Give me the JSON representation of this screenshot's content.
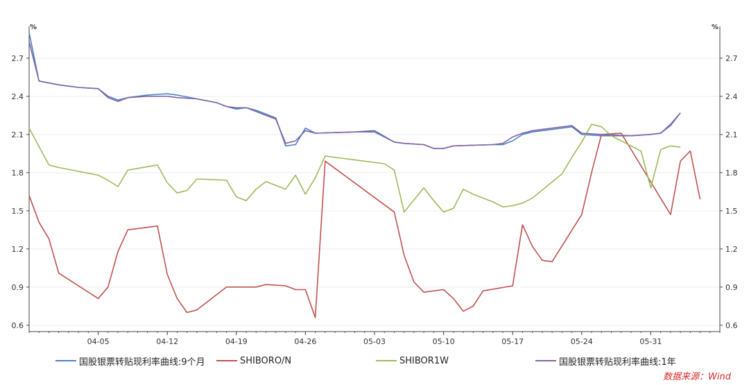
{
  "chart_data": {
    "type": "line",
    "unit_left": "%",
    "unit_right": "%",
    "ylim": [
      0.55,
      2.95
    ],
    "yticks": [
      0.6,
      0.9,
      1.2,
      1.5,
      1.8,
      2.1,
      2.4,
      2.7
    ],
    "ytick_labels": [
      "0.6",
      "0.9",
      "1.2",
      "1.5",
      "1.8",
      "2.1",
      "2.4",
      "2.7"
    ],
    "x_index_range": [
      0,
      70
    ],
    "xticks": [
      {
        "index": 7,
        "label": "04-05"
      },
      {
        "index": 14,
        "label": "04-12"
      },
      {
        "index": 21,
        "label": "04-19"
      },
      {
        "index": 28,
        "label": "04-26"
      },
      {
        "index": 35,
        "label": "05-03"
      },
      {
        "index": 42,
        "label": "05-10"
      },
      {
        "index": 49,
        "label": "05-17"
      },
      {
        "index": 56,
        "label": "05-24"
      },
      {
        "index": 63,
        "label": "05-31"
      }
    ],
    "series": [
      {
        "name": "国股银票转贴现利率曲线:9个月",
        "color": "#4a7fc4",
        "points": [
          [
            0,
            2.9
          ],
          [
            1,
            2.52
          ],
          [
            3,
            2.49
          ],
          [
            5,
            2.47
          ],
          [
            7,
            2.46
          ],
          [
            8,
            2.4
          ],
          [
            9,
            2.37
          ],
          [
            10,
            2.39
          ],
          [
            12,
            2.41
          ],
          [
            14,
            2.42
          ],
          [
            15,
            2.41
          ],
          [
            17,
            2.38
          ],
          [
            19,
            2.35
          ],
          [
            20,
            2.32
          ],
          [
            21,
            2.3
          ],
          [
            22,
            2.31
          ],
          [
            23,
            2.29
          ],
          [
            25,
            2.23
          ],
          [
            26,
            2.01
          ],
          [
            27,
            2.02
          ],
          [
            28,
            2.15
          ],
          [
            29,
            2.11
          ],
          [
            33,
            2.12
          ],
          [
            35,
            2.13
          ],
          [
            37,
            2.04
          ],
          [
            38,
            2.03
          ],
          [
            40,
            2.02
          ],
          [
            41,
            1.99
          ],
          [
            42,
            1.99
          ],
          [
            43,
            2.01
          ],
          [
            47,
            2.02
          ],
          [
            48,
            2.02
          ],
          [
            49,
            2.05
          ],
          [
            50,
            2.1
          ],
          [
            51,
            2.12
          ],
          [
            55,
            2.16
          ],
          [
            56,
            2.1
          ],
          [
            58,
            2.09
          ],
          [
            61,
            2.09
          ],
          [
            63,
            2.1
          ],
          [
            64,
            2.11
          ],
          [
            65,
            2.17
          ],
          [
            66,
            2.27
          ]
        ]
      },
      {
        "name": "SHIBORO/N",
        "color": "#c0504d",
        "points": [
          [
            0,
            1.62
          ],
          [
            1,
            1.41
          ],
          [
            2,
            1.28
          ],
          [
            3,
            1.01
          ],
          [
            7,
            0.81
          ],
          [
            8,
            0.9
          ],
          [
            9,
            1.18
          ],
          [
            10,
            1.35
          ],
          [
            13,
            1.38
          ],
          [
            14,
            1.0
          ],
          [
            15,
            0.81
          ],
          [
            16,
            0.7
          ],
          [
            17,
            0.72
          ],
          [
            20,
            0.9
          ],
          [
            22,
            0.9
          ],
          [
            23,
            0.9
          ],
          [
            24,
            0.92
          ],
          [
            26,
            0.91
          ],
          [
            27,
            0.88
          ],
          [
            28,
            0.88
          ],
          [
            29,
            0.66
          ],
          [
            30,
            1.89
          ],
          [
            37,
            1.49
          ],
          [
            38,
            1.15
          ],
          [
            39,
            0.94
          ],
          [
            40,
            0.86
          ],
          [
            42,
            0.88
          ],
          [
            43,
            0.81
          ],
          [
            44,
            0.71
          ],
          [
            45,
            0.75
          ],
          [
            46,
            0.87
          ],
          [
            49,
            0.91
          ],
          [
            50,
            1.39
          ],
          [
            51,
            1.22
          ],
          [
            52,
            1.11
          ],
          [
            53,
            1.1
          ],
          [
            56,
            1.47
          ],
          [
            57,
            1.8
          ],
          [
            58,
            2.1
          ],
          [
            60,
            2.11
          ],
          [
            65,
            1.47
          ],
          [
            66,
            1.89
          ],
          [
            67,
            1.97
          ],
          [
            68,
            1.59
          ]
        ]
      },
      {
        "name": "SHIBOR1W",
        "color": "#9bbb59",
        "points": [
          [
            0,
            2.15
          ],
          [
            2,
            1.86
          ],
          [
            3,
            1.84
          ],
          [
            7,
            1.78
          ],
          [
            8,
            1.74
          ],
          [
            9,
            1.69
          ],
          [
            10,
            1.82
          ],
          [
            13,
            1.86
          ],
          [
            14,
            1.72
          ],
          [
            15,
            1.64
          ],
          [
            16,
            1.66
          ],
          [
            17,
            1.75
          ],
          [
            20,
            1.74
          ],
          [
            21,
            1.61
          ],
          [
            22,
            1.58
          ],
          [
            23,
            1.67
          ],
          [
            24,
            1.73
          ],
          [
            25,
            1.7
          ],
          [
            26,
            1.67
          ],
          [
            27,
            1.78
          ],
          [
            28,
            1.63
          ],
          [
            29,
            1.76
          ],
          [
            30,
            1.93
          ],
          [
            36,
            1.87
          ],
          [
            37,
            1.82
          ],
          [
            38,
            1.49
          ],
          [
            40,
            1.68
          ],
          [
            41,
            1.58
          ],
          [
            42,
            1.49
          ],
          [
            43,
            1.52
          ],
          [
            44,
            1.67
          ],
          [
            45,
            1.63
          ],
          [
            47,
            1.57
          ],
          [
            48,
            1.53
          ],
          [
            49,
            1.54
          ],
          [
            50,
            1.56
          ],
          [
            51,
            1.6
          ],
          [
            54,
            1.79
          ],
          [
            55,
            1.92
          ],
          [
            56,
            2.04
          ],
          [
            57,
            2.18
          ],
          [
            58,
            2.16
          ],
          [
            59,
            2.09
          ],
          [
            62,
            1.97
          ],
          [
            63,
            1.68
          ],
          [
            64,
            1.98
          ],
          [
            65,
            2.01
          ],
          [
            66,
            2.0
          ]
        ]
      },
      {
        "name": "国股银票转贴现利率曲线:1年",
        "color": "#8064a2",
        "points": [
          [
            0,
            2.83
          ],
          [
            1,
            2.52
          ],
          [
            3,
            2.49
          ],
          [
            5,
            2.47
          ],
          [
            7,
            2.46
          ],
          [
            8,
            2.39
          ],
          [
            9,
            2.36
          ],
          [
            10,
            2.39
          ],
          [
            12,
            2.4
          ],
          [
            14,
            2.4
          ],
          [
            15,
            2.39
          ],
          [
            17,
            2.38
          ],
          [
            19,
            2.35
          ],
          [
            20,
            2.32
          ],
          [
            21,
            2.31
          ],
          [
            22,
            2.31
          ],
          [
            23,
            2.28
          ],
          [
            25,
            2.22
          ],
          [
            26,
            2.03
          ],
          [
            27,
            2.05
          ],
          [
            28,
            2.13
          ],
          [
            29,
            2.11
          ],
          [
            33,
            2.12
          ],
          [
            35,
            2.12
          ],
          [
            37,
            2.04
          ],
          [
            38,
            2.03
          ],
          [
            40,
            2.02
          ],
          [
            41,
            1.99
          ],
          [
            42,
            1.99
          ],
          [
            43,
            2.01
          ],
          [
            47,
            2.02
          ],
          [
            48,
            2.03
          ],
          [
            49,
            2.08
          ],
          [
            50,
            2.11
          ],
          [
            51,
            2.13
          ],
          [
            55,
            2.17
          ],
          [
            56,
            2.11
          ],
          [
            58,
            2.1
          ],
          [
            61,
            2.09
          ],
          [
            63,
            2.1
          ],
          [
            64,
            2.11
          ],
          [
            65,
            2.18
          ],
          [
            66,
            2.27
          ]
        ]
      }
    ]
  },
  "legend": {
    "item1": "国股银票转贴现利率曲线:9个月",
    "item2": "SHIBORO/N",
    "item3": "SHIBOR1W",
    "item4": "国股银票转贴现利率曲线:1年"
  },
  "source": "数据来源：Wind",
  "colors": {
    "series1": "#4a7fc4",
    "series2": "#c0504d",
    "series3": "#9bbb59",
    "series4": "#8064a2",
    "axis": "#444444",
    "grid": "#eeeeee",
    "source": "#d42a2a"
  }
}
